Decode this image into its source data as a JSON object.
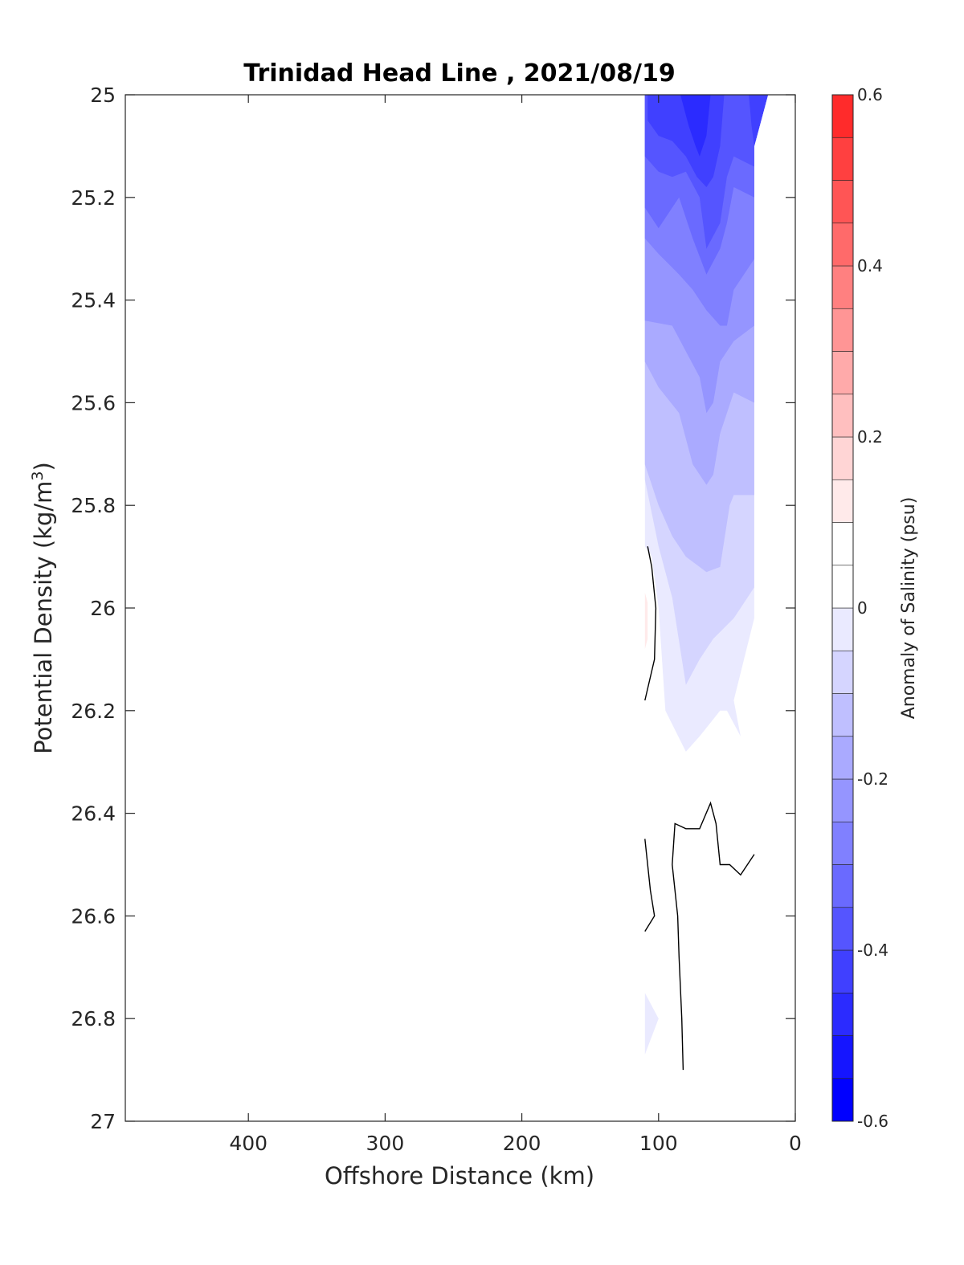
{
  "chart_data": {
    "type": "contour",
    "title": "Trinidad Head Line , 2021/08/19",
    "xlabel": "Offshore Distance (km)",
    "ylabel": {
      "base": "Potential Density (kg/m",
      "sup": "3",
      "tail": ")"
    },
    "xlim": [
      490,
      0
    ],
    "ylim": [
      25,
      27
    ],
    "x_ticks": [
      400,
      300,
      200,
      100,
      0
    ],
    "x_tick_labels": [
      "400",
      "300",
      "200",
      "100",
      "0"
    ],
    "y_ticks": [
      25,
      25.2,
      25.4,
      25.6,
      25.8,
      26,
      26.2,
      26.4,
      26.6,
      26.8,
      27
    ],
    "y_tick_labels": [
      "25",
      "25.2",
      "25.4",
      "25.6",
      "25.8",
      "26",
      "26.2",
      "26.4",
      "26.6",
      "26.8",
      "27"
    ],
    "y_reversed": true,
    "colorbar": {
      "label": "Anomaly of Salinity (psu)",
      "range": [
        -0.6,
        0.6
      ],
      "step": 0.05,
      "ticks": [
        0.6,
        0.4,
        0.2,
        0,
        -0.2,
        -0.4,
        -0.6
      ],
      "tick_labels": [
        "0.6",
        "0.4",
        "0.2",
        "0",
        "-0.2",
        "-0.4",
        "-0.6"
      ],
      "colors": [
        "#0000ff",
        "#1515ff",
        "#2b2bff",
        "#4040ff",
        "#5555ff",
        "#6a6aff",
        "#8080ff",
        "#9595ff",
        "#aaaaff",
        "#bfbfff",
        "#d5d5ff",
        "#eaeaff",
        "#ffffff",
        "#ffffff",
        "#ffeaea",
        "#ffd5d5",
        "#ffbfbf",
        "#ffaaaa",
        "#ff9595",
        "#ff8080",
        "#ff6a6a",
        "#ff5555",
        "#ff4040",
        "#ff2b2b",
        "#ff1515",
        "#ff0000"
      ]
    },
    "filled_regions": [
      {
        "anomaly": -0.1,
        "color": "#eaeaff",
        "points": [
          [
            110,
            25
          ],
          [
            20,
            25
          ],
          [
            30,
            25.1
          ],
          [
            30,
            26.02
          ],
          [
            45,
            26.18
          ],
          [
            40,
            26.25
          ],
          [
            50,
            26.2
          ],
          [
            55,
            26.2
          ],
          [
            70,
            26.25
          ],
          [
            80,
            26.28
          ],
          [
            95,
            26.2
          ],
          [
            100,
            26.0
          ],
          [
            105,
            25.9
          ],
          [
            110,
            25.88
          ]
        ]
      },
      {
        "anomaly": -0.15,
        "color": "#d5d5ff",
        "points": [
          [
            110,
            25
          ],
          [
            20,
            25
          ],
          [
            30,
            25.1
          ],
          [
            30,
            25.96
          ],
          [
            45,
            26.02
          ],
          [
            60,
            26.06
          ],
          [
            70,
            26.1
          ],
          [
            80,
            26.15
          ],
          [
            90,
            25.98
          ],
          [
            100,
            25.88
          ],
          [
            110,
            25.75
          ]
        ]
      },
      {
        "anomaly": -0.2,
        "color": "#bfbfff",
        "points": [
          [
            110,
            25
          ],
          [
            20,
            25
          ],
          [
            30,
            25.1
          ],
          [
            30,
            25.78
          ],
          [
            45,
            25.78
          ],
          [
            48,
            25.8
          ],
          [
            55,
            25.92
          ],
          [
            65,
            25.93
          ],
          [
            80,
            25.9
          ],
          [
            90,
            25.86
          ],
          [
            100,
            25.8
          ],
          [
            110,
            25.72
          ]
        ]
      },
      {
        "anomaly": -0.25,
        "color": "#aaaaff",
        "points": [
          [
            110,
            25
          ],
          [
            20,
            25
          ],
          [
            30,
            25.1
          ],
          [
            30,
            25.6
          ],
          [
            45,
            25.58
          ],
          [
            55,
            25.66
          ],
          [
            60,
            25.74
          ],
          [
            65,
            25.76
          ],
          [
            75,
            25.72
          ],
          [
            85,
            25.62
          ],
          [
            100,
            25.57
          ],
          [
            110,
            25.52
          ]
        ]
      },
      {
        "anomaly": -0.3,
        "color": "#9595ff",
        "points": [
          [
            110,
            25
          ],
          [
            20,
            25
          ],
          [
            30,
            25.1
          ],
          [
            30,
            25.45
          ],
          [
            45,
            25.48
          ],
          [
            55,
            25.52
          ],
          [
            60,
            25.6
          ],
          [
            65,
            25.62
          ],
          [
            70,
            25.55
          ],
          [
            80,
            25.5
          ],
          [
            90,
            25.45
          ],
          [
            110,
            25.44
          ]
        ]
      },
      {
        "anomaly": -0.35,
        "color": "#8080ff",
        "points": [
          [
            110,
            25
          ],
          [
            20,
            25
          ],
          [
            30,
            25.1
          ],
          [
            30,
            25.32
          ],
          [
            45,
            25.38
          ],
          [
            50,
            25.45
          ],
          [
            55,
            25.45
          ],
          [
            65,
            25.42
          ],
          [
            75,
            25.38
          ],
          [
            85,
            25.35
          ],
          [
            100,
            25.31
          ],
          [
            110,
            25.28
          ]
        ]
      },
      {
        "anomaly": -0.4,
        "color": "#6a6aff",
        "points": [
          [
            110,
            25
          ],
          [
            20,
            25
          ],
          [
            30,
            25.1
          ],
          [
            30,
            25.2
          ],
          [
            45,
            25.18
          ],
          [
            50,
            25.25
          ],
          [
            55,
            25.3
          ],
          [
            65,
            25.35
          ],
          [
            75,
            25.28
          ],
          [
            85,
            25.2
          ],
          [
            100,
            25.26
          ],
          [
            110,
            25.22
          ]
        ]
      },
      {
        "anomaly": -0.45,
        "color": "#5555ff",
        "points": [
          [
            110,
            25
          ],
          [
            20,
            25
          ],
          [
            30,
            25.1
          ],
          [
            30,
            25.14
          ],
          [
            45,
            25.12
          ],
          [
            50,
            25.16
          ],
          [
            55,
            25.25
          ],
          [
            65,
            25.3
          ],
          [
            70,
            25.2
          ],
          [
            80,
            25.15
          ],
          [
            90,
            25.16
          ],
          [
            100,
            25.15
          ],
          [
            110,
            25.12
          ]
        ]
      },
      {
        "anomaly": -0.5,
        "color": "#4040ff",
        "points": [
          [
            108,
            25
          ],
          [
            52,
            25
          ],
          [
            55,
            25.1
          ],
          [
            60,
            25.16
          ],
          [
            65,
            25.18
          ],
          [
            72,
            25.16
          ],
          [
            80,
            25.12
          ],
          [
            90,
            25.09
          ],
          [
            100,
            25.08
          ],
          [
            108,
            25.05
          ]
        ]
      },
      {
        "anomaly": -0.5,
        "color": "#4040ff",
        "points": [
          [
            34,
            25
          ],
          [
            20,
            25
          ],
          [
            30,
            25.1
          ],
          [
            32,
            25.06
          ]
        ]
      },
      {
        "anomaly": -0.55,
        "color": "#2b2bff",
        "points": [
          [
            84,
            25
          ],
          [
            62,
            25
          ],
          [
            65,
            25.08
          ],
          [
            70,
            25.12
          ],
          [
            73,
            25.1
          ],
          [
            78,
            25.06
          ]
        ]
      },
      {
        "anomaly": 0.05,
        "color": "#ffeaea",
        "points": [
          [
            110,
            25.97
          ],
          [
            108,
            25.99
          ],
          [
            108,
            26.06
          ],
          [
            110,
            26.08
          ]
        ]
      },
      {
        "anomaly": -0.1,
        "color": "#eaeaff",
        "points": [
          [
            110,
            26.75
          ],
          [
            100,
            26.8
          ],
          [
            110,
            26.87
          ]
        ]
      }
    ],
    "contour_lines": [
      {
        "level": 0,
        "points": [
          [
            108,
            25.88
          ],
          [
            105,
            25.92
          ],
          [
            102,
            26.0
          ],
          [
            103,
            26.1
          ],
          [
            110,
            26.18
          ]
        ]
      },
      {
        "level": 0,
        "points": [
          [
            110,
            26.45
          ],
          [
            106,
            26.55
          ],
          [
            103,
            26.6
          ],
          [
            110,
            26.63
          ]
        ]
      },
      {
        "level": 0,
        "points": [
          [
            82,
            26.9
          ],
          [
            83,
            26.8
          ],
          [
            85,
            26.68
          ],
          [
            86,
            26.6
          ],
          [
            88,
            26.55
          ],
          [
            90,
            26.5
          ],
          [
            88,
            26.42
          ],
          [
            80,
            26.43
          ],
          [
            70,
            26.43
          ],
          [
            62,
            26.38
          ],
          [
            58,
            26.42
          ],
          [
            55,
            26.5
          ],
          [
            48,
            26.5
          ],
          [
            40,
            26.52
          ],
          [
            30,
            26.48
          ]
        ]
      }
    ]
  }
}
